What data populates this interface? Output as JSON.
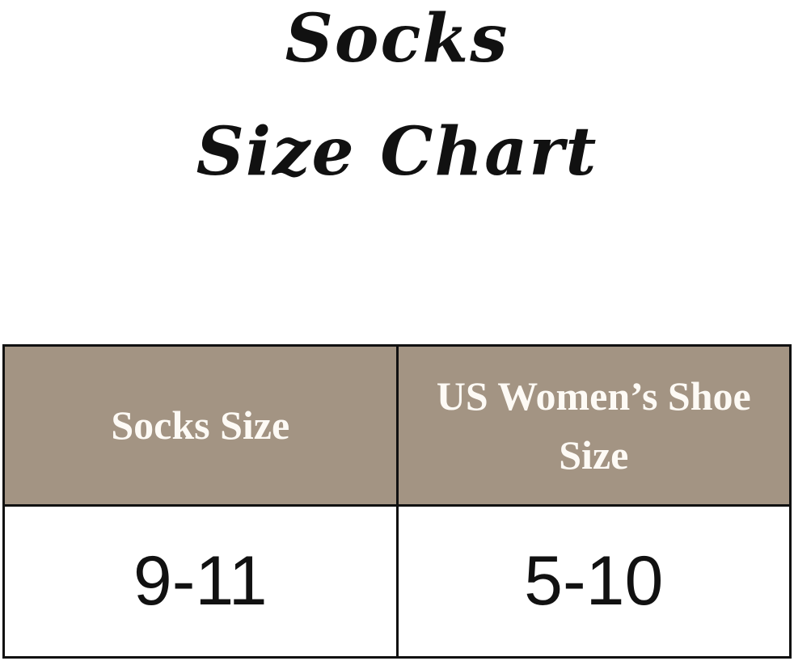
{
  "title": {
    "line1": "Socks",
    "line2": "Size Chart"
  },
  "table": {
    "headers": [
      "Socks Size",
      "US Women’s Shoe Size"
    ],
    "rows": [
      [
        "9-11",
        "5-10"
      ]
    ]
  },
  "colors": {
    "header_bg": "#a39483",
    "header_text": "#fdfaf5",
    "border": "#111111"
  }
}
